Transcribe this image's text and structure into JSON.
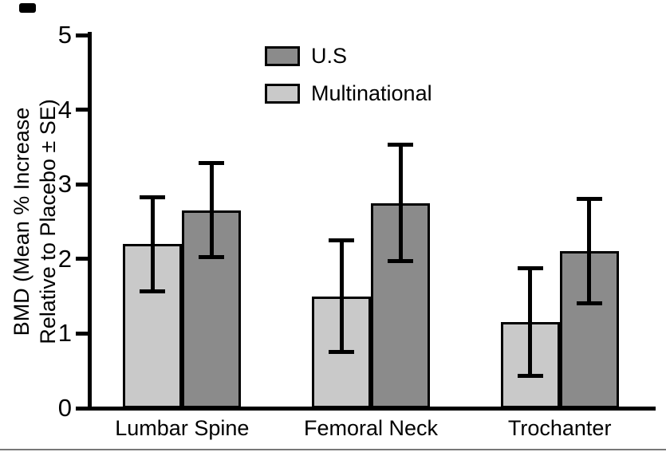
{
  "chart_data": {
    "type": "bar",
    "title": "",
    "xlabel": "",
    "ylabel": "BMD (Mean % Increase Relative to Placebo ± SE)",
    "ylabel_line1": "BMD (Mean % Increase",
    "ylabel_line2": "Relative to Placebo ± SE)",
    "categories": [
      "Lumbar Spine",
      "Femoral Neck",
      "Trochanter"
    ],
    "series": [
      {
        "name": "Multinational",
        "color": "#c9c9c9",
        "values": [
          2.2,
          1.5,
          1.15
        ],
        "errors": [
          0.63,
          0.75,
          0.72
        ]
      },
      {
        "name": "U.S",
        "color": "#8b8b8b",
        "values": [
          2.65,
          2.75,
          2.1
        ],
        "errors": [
          0.63,
          0.78,
          0.7
        ]
      }
    ],
    "legend": [
      {
        "label": "U.S",
        "color": "#8b8b8b"
      },
      {
        "label": "Multinational",
        "color": "#c9c9c9"
      }
    ],
    "ylim": [
      0,
      5
    ],
    "yticks": [
      0,
      1,
      2,
      3,
      4,
      5
    ],
    "legend_position": "top-center",
    "grid": false,
    "error_bars": true
  }
}
